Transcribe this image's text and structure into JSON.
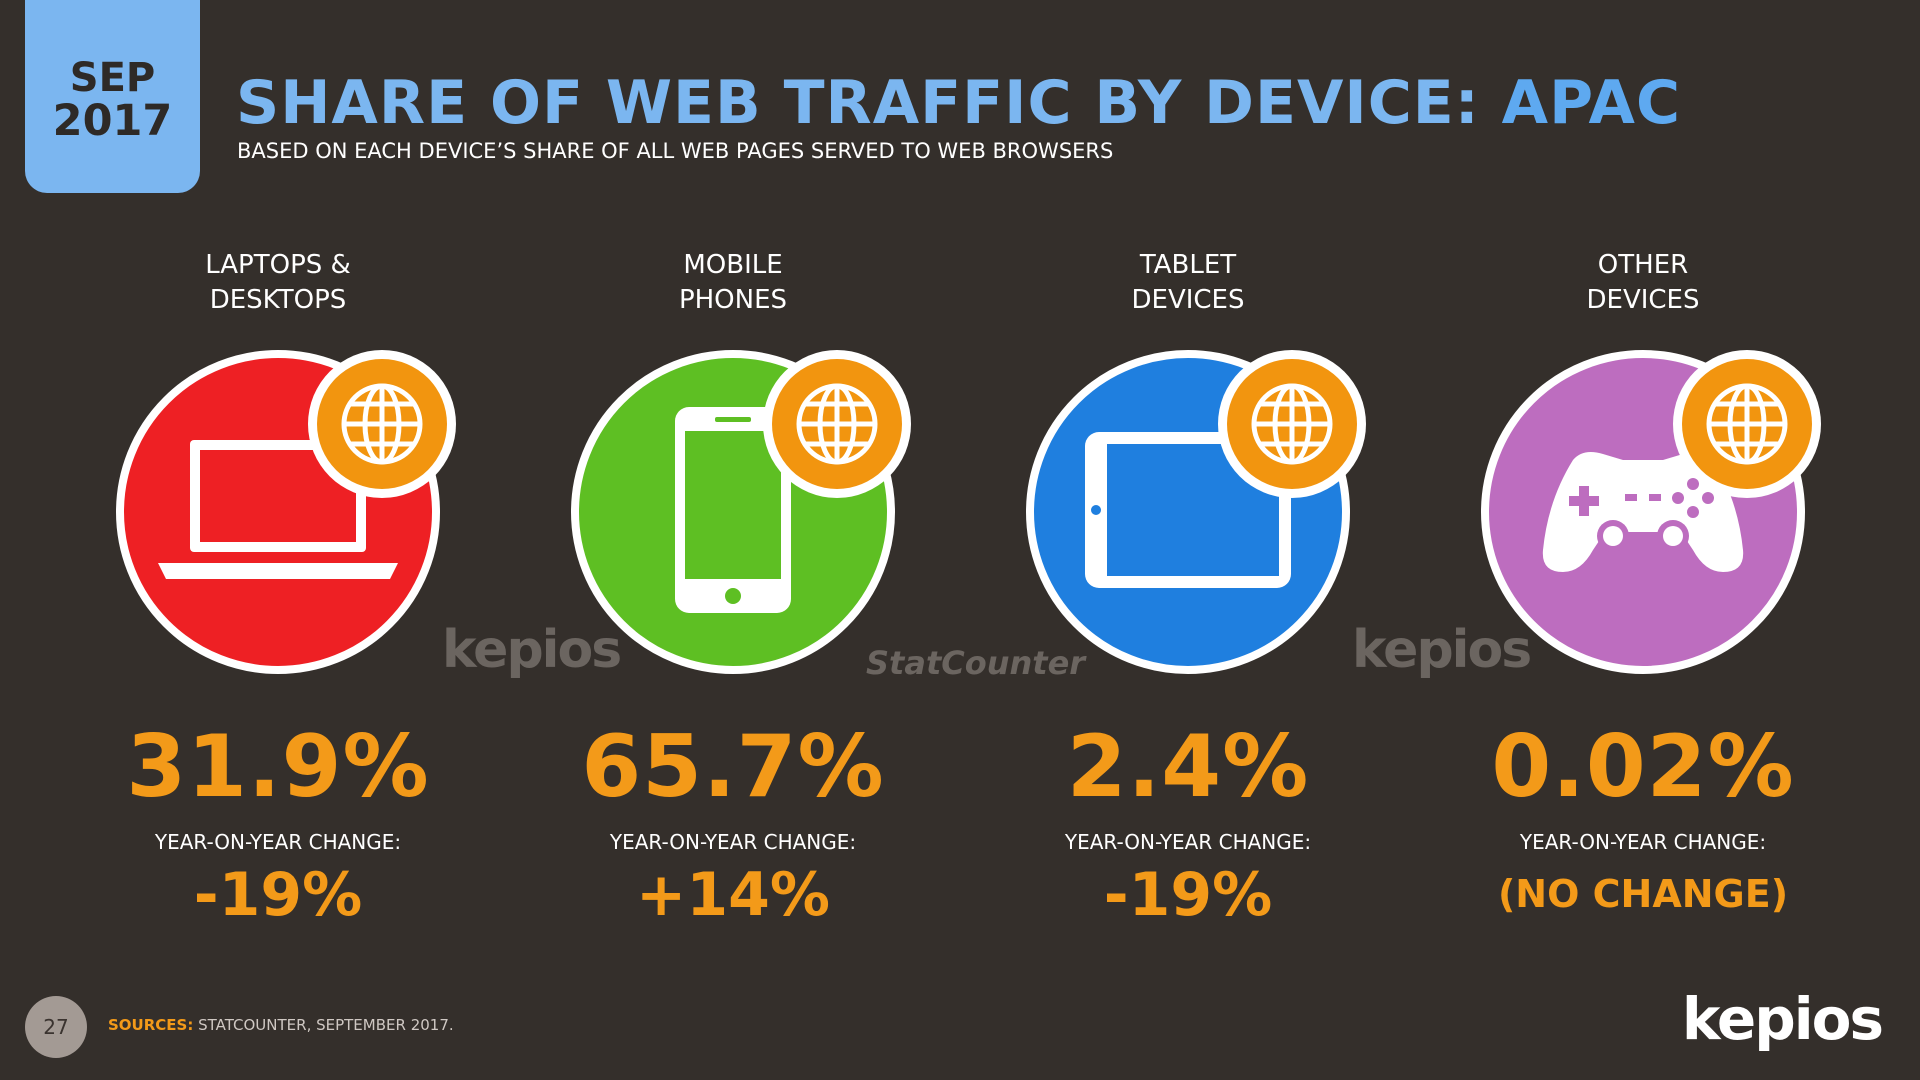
{
  "header": {
    "date_month": "SEP",
    "date_year": "2017",
    "title_main": "SHARE OF WEB TRAFFIC BY DEVICE:",
    "title_region": "APAC",
    "subtitle": "BASED ON EACH DEVICE’S SHARE OF ALL WEB PAGES SERVED TO WEB BROWSERS"
  },
  "devices": [
    {
      "label_line1": "LAPTOPS &",
      "label_line2": "DESKTOPS",
      "share": "31.9%",
      "yoy_label": "YEAR-ON-YEAR CHANGE:",
      "yoy": "-19%",
      "color": "#ee2024",
      "icon": "laptop-icon"
    },
    {
      "label_line1": "MOBILE",
      "label_line2": "PHONES",
      "share": "65.7%",
      "yoy_label": "YEAR-ON-YEAR CHANGE:",
      "yoy": "+14%",
      "color": "#5ebf23",
      "icon": "mobile-phone-icon"
    },
    {
      "label_line1": "TABLET",
      "label_line2": "DEVICES",
      "share": "2.4%",
      "yoy_label": "YEAR-ON-YEAR CHANGE:",
      "yoy": "-19%",
      "color": "#1f7fdf",
      "icon": "tablet-icon"
    },
    {
      "label_line1": "OTHER",
      "label_line2": "DEVICES",
      "share": "0.02%",
      "yoy_label": "YEAR-ON-YEAR CHANGE:",
      "yoy": "(NO CHANGE)",
      "color": "#bd6dbf",
      "icon": "game-controller-icon"
    }
  ],
  "watermarks": {
    "left": "kepios",
    "middle": "StatCounter",
    "right": "kepios"
  },
  "footer": {
    "page_number": "27",
    "sources_label": "SOURCES:",
    "sources_text": "STATCOUNTER, SEPTEMBER 2017.",
    "brand": "kepios"
  },
  "colors": {
    "accent_orange": "#f39a19",
    "title_blue": "#7bb6f0",
    "background": "#342f2b"
  }
}
